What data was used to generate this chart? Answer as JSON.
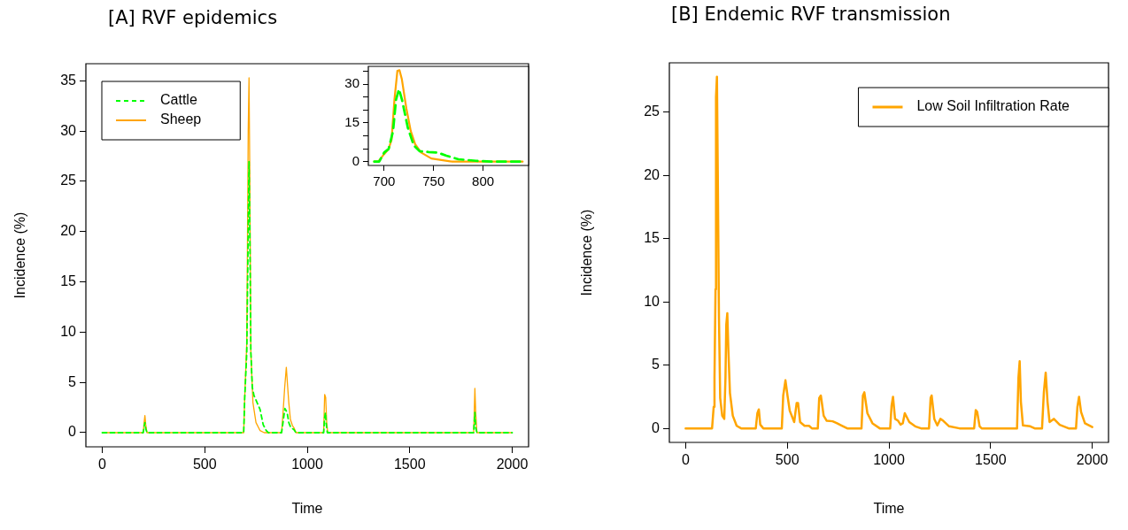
{
  "chart_data": [
    {
      "type": "line",
      "title": "[A] RVF epidemics",
      "xlabel": "Time",
      "ylabel": "Incidence (%)",
      "xlim": [
        -80,
        2080
      ],
      "ylim": [
        -1.41,
        36.7
      ],
      "xticks": [
        0,
        500,
        1000,
        1500,
        2000
      ],
      "yticks": [
        0,
        5,
        10,
        15,
        20,
        25,
        30,
        35
      ],
      "legend": "top left",
      "series": [
        {
          "name": "Cattle",
          "color": "#00ff00",
          "line_style": "dashed",
          "x": [
            0,
            200,
            204,
            208,
            212,
            218,
            690,
            695,
            705,
            712,
            716,
            720,
            725,
            732,
            740,
            755,
            770,
            785,
            800,
            810,
            875,
            885,
            891,
            902,
            910,
            920,
            935,
            945,
            1080,
            1085,
            1089,
            1092,
            1098,
            1812,
            1818,
            1822,
            1828,
            2000
          ],
          "values": [
            0,
            0,
            0.6,
            1.0,
            0.4,
            0,
            0,
            3.5,
            8,
            20,
            27,
            20,
            8,
            4.5,
            3.7,
            3,
            2.3,
            0.8,
            0.2,
            0,
            0,
            1.5,
            2.4,
            2,
            1,
            0.5,
            0.3,
            0,
            0,
            1.5,
            2.0,
            1,
            0,
            0,
            2.0,
            0.5,
            0,
            0
          ]
        },
        {
          "name": "Sheep",
          "color": "#ffa500",
          "line_style": "solid",
          "x": [
            0,
            200,
            204,
            208,
            212,
            218,
            690,
            695,
            705,
            712,
            716,
            720,
            725,
            735,
            750,
            770,
            790,
            875,
            882,
            890,
            898,
            903,
            910,
            918,
            928,
            935,
            945,
            1080,
            1085,
            1090,
            1095,
            1100,
            1812,
            1818,
            1822,
            1828,
            2000
          ],
          "values": [
            0,
            0,
            1,
            1.7,
            0.8,
            0,
            0,
            3.5,
            9,
            30,
            35.3,
            25,
            8,
            3,
            1,
            0.2,
            0,
            0,
            2,
            4.5,
            6.5,
            5,
            3,
            1.3,
            0.7,
            0.5,
            0,
            0,
            3.8,
            3.5,
            1,
            0,
            0,
            4.4,
            2,
            0,
            0
          ]
        }
      ]
    },
    {
      "type": "line",
      "xlim": [
        684,
        846
      ],
      "ylim": [
        -1.5,
        36.9
      ],
      "xticks": [
        700,
        750,
        800
      ],
      "yticks": [
        0,
        {
          "value": 5,
          "label": null
        },
        {
          "value": 10,
          "label": null
        },
        15,
        {
          "value": 20,
          "label": null
        },
        {
          "value": 25,
          "label": null
        },
        30,
        {
          "value": 35,
          "label": null
        }
      ],
      "series": [
        {
          "color": "#00ff00",
          "line_style": "dashed",
          "x": [
            690,
            695,
            700,
            704.5,
            709,
            712,
            715,
            718,
            724,
            730,
            736,
            745,
            754,
            763,
            775,
            793,
            808,
            840
          ],
          "values": [
            0,
            0,
            3.5,
            4.9,
            11.8,
            24,
            28,
            24,
            13,
            6.2,
            4,
            3.7,
            3.5,
            2.3,
            0.9,
            0.3,
            0,
            0
          ]
        },
        {
          "color": "#ffa500",
          "line_style": "solid",
          "x": [
            690,
            694,
            700,
            704.5,
            707.5,
            710.4,
            713.4,
            715.5,
            717.9,
            722.4,
            726.9,
            731.3,
            737.3,
            747.7,
            768.6,
            840
          ],
          "values": [
            0,
            0,
            2.9,
            4.9,
            8.5,
            24,
            35.2,
            35.4,
            31.9,
            20.7,
            11.8,
            6.8,
            3.5,
            1.2,
            0,
            0
          ]
        }
      ]
    },
    {
      "type": "line",
      "title": "[B] Endemic RVF transmission",
      "xlabel": "Time",
      "ylabel": "Incidence (%)",
      "xlim": [
        -80,
        2080
      ],
      "ylim": [
        -1.11,
        28.9
      ],
      "xticks": [
        0,
        500,
        1000,
        1500,
        2000
      ],
      "yticks": [
        0,
        5,
        10,
        15,
        20,
        25
      ],
      "legend": "top right",
      "series": [
        {
          "name": "Low Soil Infiltration Rate",
          "color": "#ffa500",
          "line_style": "solid",
          "x": [
            0,
            130,
            138,
            142,
            147,
            149.5,
            154,
            158,
            164,
            170,
            180,
            190,
            196,
            200,
            205,
            210,
            218,
            232,
            251,
            273,
            345,
            353,
            360,
            367,
            382,
            473,
            480,
            491,
            501,
            512,
            534,
            546,
            553,
            563,
            585,
            607,
            621,
            650,
            657,
            665,
            679,
            694,
            723,
            745,
            766,
            795,
            865,
            872,
            879,
            894,
            919,
            955,
            1006,
            1013,
            1020,
            1030,
            1045,
            1057,
            1068,
            1078,
            1100,
            1129,
            1158,
            1197,
            1205,
            1210,
            1223,
            1238,
            1253,
            1267,
            1296,
            1347,
            1419,
            1427,
            1434,
            1446,
            1456,
            1630,
            1637,
            1643,
            1649,
            1659,
            1695,
            1717,
            1753,
            1762,
            1771,
            1780,
            1790,
            1811,
            1840,
            1884,
            1920,
            1927,
            1935,
            1945,
            1964,
            2000
          ],
          "values": [
            0,
            0,
            1.7,
            4,
            11,
            26.2,
            27.8,
            20.4,
            8.7,
            2.4,
            1.0,
            0.75,
            4,
            8.2,
            9.1,
            6.3,
            2.8,
            1.0,
            0.2,
            0,
            0,
            1.2,
            1.5,
            0.3,
            0,
            0,
            2.6,
            3.8,
            2.6,
            1.4,
            0.5,
            2.0,
            2.0,
            0.5,
            0.2,
            0.2,
            0,
            0,
            2.4,
            2.6,
            1.0,
            0.6,
            0.56,
            0.4,
            0.23,
            0,
            0,
            2.6,
            2.85,
            1.2,
            0.4,
            0,
            0,
            1.8,
            2.5,
            0.75,
            0.6,
            0.3,
            0.4,
            1.2,
            0.5,
            0.16,
            0,
            0,
            2.4,
            2.6,
            0.75,
            0.23,
            0.75,
            0.6,
            0.16,
            0,
            0,
            1.45,
            1.3,
            0.16,
            0,
            0,
            4,
            5.3,
            2.1,
            0.23,
            0.16,
            0,
            0,
            2.85,
            4.4,
            2.1,
            0.5,
            0.75,
            0.28,
            0,
            0,
            1.7,
            2.5,
            1.3,
            0.4,
            0.1
          ]
        }
      ]
    }
  ]
}
